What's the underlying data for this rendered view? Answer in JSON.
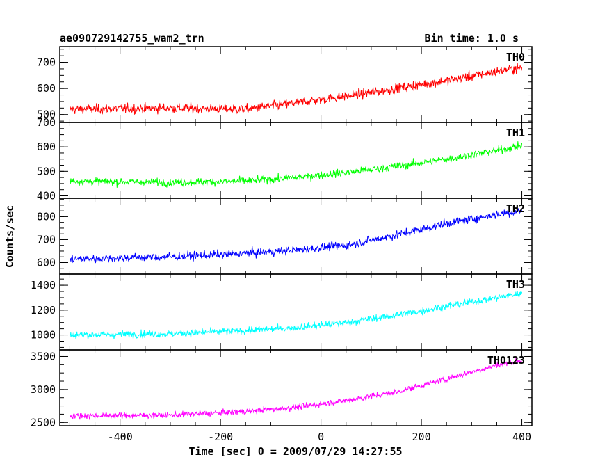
{
  "header": {
    "left": "ae090729142755_wam2_trn",
    "right": "Bin time: 1.0 s"
  },
  "chart_data": {
    "type": "line",
    "title": "ae090729142755_wam2_trn",
    "subtitle": "Bin time: 1.0 s",
    "xlabel": "Time [sec] 0 = 2009/07/29 14:27:55",
    "ylabel": "Counts/sec",
    "xlim": [
      -520,
      420
    ],
    "x_ticks": [
      -400,
      -200,
      0,
      200,
      400
    ],
    "x_range_data": [
      -500,
      400
    ],
    "bin_time_s": 1.0,
    "grid": false,
    "panels": [
      {
        "name": "TH0",
        "color": "#ff0000",
        "ylim": [
          470,
          760
        ],
        "y_ticks": [
          500,
          600,
          700
        ],
        "trend_x": [
          -500,
          -300,
          -150,
          -50,
          50,
          150,
          250,
          350,
          400
        ],
        "trend_y": [
          520,
          525,
          520,
          545,
          570,
          600,
          630,
          665,
          680
        ],
        "noise_amplitude": 28
      },
      {
        "name": "TH1",
        "color": "#00ff00",
        "ylim": [
          390,
          700
        ],
        "y_ticks": [
          400,
          500,
          600,
          700
        ],
        "trend_x": [
          -500,
          -300,
          -150,
          -50,
          50,
          150,
          250,
          350,
          400
        ],
        "trend_y": [
          460,
          455,
          460,
          475,
          495,
          520,
          550,
          585,
          605
        ],
        "noise_amplitude": 24
      },
      {
        "name": "TH2",
        "color": "#0000ff",
        "ylim": [
          550,
          880
        ],
        "y_ticks": [
          600,
          700,
          800
        ],
        "trend_x": [
          -500,
          -300,
          -150,
          -50,
          50,
          150,
          250,
          350,
          400
        ],
        "trend_y": [
          615,
          625,
          640,
          655,
          675,
          720,
          770,
          810,
          825
        ],
        "noise_amplitude": 28
      },
      {
        "name": "TH3",
        "color": "#00ffff",
        "ylim": [
          880,
          1490
        ],
        "y_ticks": [
          1000,
          1200,
          1400
        ],
        "trend_x": [
          -500,
          -300,
          -150,
          -50,
          50,
          150,
          250,
          350,
          400
        ],
        "trend_y": [
          1000,
          1010,
          1035,
          1060,
          1100,
          1160,
          1230,
          1300,
          1335
        ],
        "noise_amplitude": 45
      },
      {
        "name": "TH0123",
        "color": "#ff00ff",
        "ylim": [
          2450,
          3600
        ],
        "y_ticks": [
          2500,
          3000,
          3500
        ],
        "trend_x": [
          -500,
          -300,
          -150,
          -50,
          50,
          150,
          250,
          350,
          400
        ],
        "trend_y": [
          2600,
          2610,
          2665,
          2730,
          2830,
          2960,
          3160,
          3370,
          3440
        ],
        "noise_amplitude": 70
      }
    ]
  }
}
